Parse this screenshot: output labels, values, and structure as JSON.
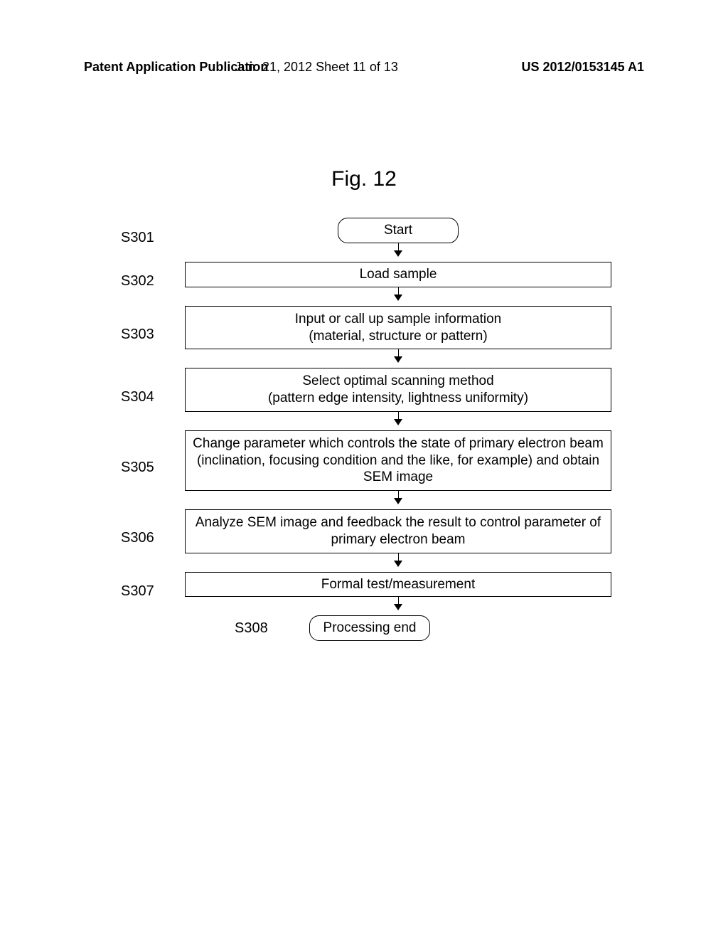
{
  "header": {
    "left": "Patent Application Publication",
    "mid": "Jun. 21, 2012  Sheet 11 of 13",
    "right": "US 2012/0153145 A1"
  },
  "figure_title": "Fig. 12",
  "flowchart": {
    "type": "flowchart",
    "border_color": "#000000",
    "background_color": "#ffffff",
    "text_color": "#000000",
    "box_border_width": 1.5,
    "terminal_border_radius": 14,
    "label_fontsize": 20,
    "box_fontsize": 19,
    "arrow_head_size": 9,
    "nodes": [
      {
        "id": "S301",
        "label": "S301",
        "text": "Start",
        "shape": "terminal"
      },
      {
        "id": "S302",
        "label": "S302",
        "text": "Load sample",
        "shape": "process"
      },
      {
        "id": "S303",
        "label": "S303",
        "text": "Input or call up sample information\n(material, structure or pattern)",
        "shape": "process"
      },
      {
        "id": "S304",
        "label": "S304",
        "text": "Select optimal scanning method\n(pattern edge intensity, lightness uniformity)",
        "shape": "process"
      },
      {
        "id": "S305",
        "label": "S305",
        "text": "Change parameter which controls the state of primary electron beam (inclination, focusing condition and the like, for example) and obtain SEM image",
        "shape": "process"
      },
      {
        "id": "S306",
        "label": "S306",
        "text": "Analyze SEM image and feedback the result to control parameter of primary electron beam",
        "shape": "process"
      },
      {
        "id": "S307",
        "label": "S307",
        "text": "Formal test/measurement",
        "shape": "process"
      },
      {
        "id": "S308",
        "label": "S308",
        "text": "Processing end",
        "shape": "terminal"
      }
    ],
    "edges": [
      {
        "from": "S301",
        "to": "S302"
      },
      {
        "from": "S302",
        "to": "S303"
      },
      {
        "from": "S303",
        "to": "S304"
      },
      {
        "from": "S304",
        "to": "S305"
      },
      {
        "from": "S305",
        "to": "S306"
      },
      {
        "from": "S306",
        "to": "S307"
      },
      {
        "from": "S307",
        "to": "S308"
      }
    ]
  }
}
